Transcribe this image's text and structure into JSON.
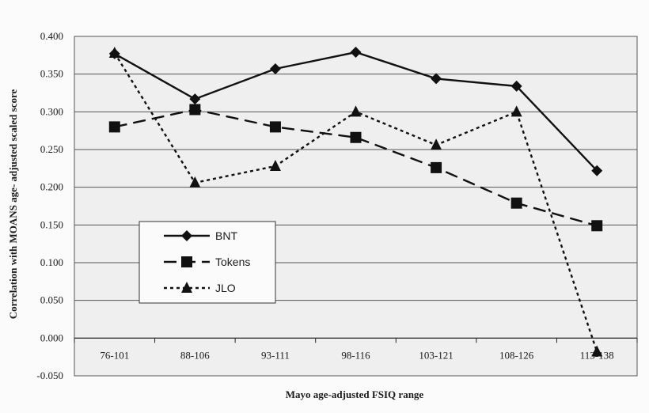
{
  "chart_data": {
    "type": "line",
    "categories": [
      "76-101",
      "88-106",
      "93-111",
      "98-116",
      "103-121",
      "108-126",
      "113-138"
    ],
    "series": [
      {
        "name": "BNT",
        "values": [
          0.377,
          0.317,
          0.357,
          0.379,
          0.344,
          0.334,
          0.222
        ],
        "marker": "diamond",
        "line": "solid"
      },
      {
        "name": "Tokens",
        "values": [
          0.28,
          0.303,
          0.28,
          0.266,
          0.226,
          0.179,
          0.149
        ],
        "marker": "square",
        "line": "long-dash"
      },
      {
        "name": "JLO",
        "values": [
          0.378,
          0.206,
          0.228,
          0.3,
          0.256,
          0.3,
          -0.018
        ],
        "marker": "triangle",
        "line": "dotted"
      }
    ],
    "xlabel": "Mayo  age-adjusted FSIQ  range",
    "ylabel": "Correlation with MOANS age- adjusted scaled score",
    "ylim": [
      -0.05,
      0.4
    ],
    "yticks": [
      "-0.050",
      "0.000",
      "0.050",
      "0.100",
      "0.150",
      "0.200",
      "0.250",
      "0.300",
      "0.350",
      "0.400"
    ],
    "grid": true,
    "legend_position": "lower-left inside plot",
    "colors": {
      "background": "#fbfbfb",
      "plot_bg": "#efefef",
      "line": "#111111",
      "grid": "#444444"
    }
  }
}
